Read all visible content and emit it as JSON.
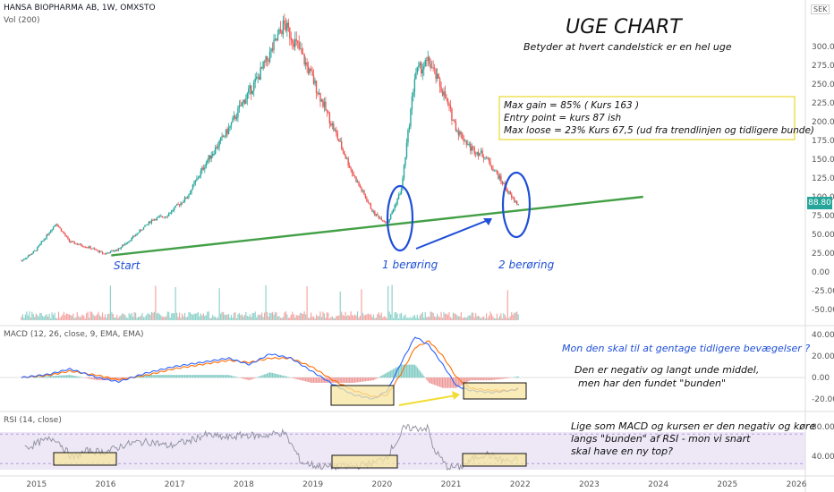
{
  "header": {
    "ticker": "HANSA BIOPHARMA AB, 1W, OMXSTO",
    "vol": "Vol (200)",
    "macd": "MACD (12, 26, close, 9, EMA, EMA)",
    "rsi": "RSI (14, close)",
    "currency": "SEK",
    "last_price": "88.80"
  },
  "annotations": {
    "title": "UGE CHART",
    "subtitle": "Betyder at hvert candelstick er en hel uge",
    "box_lines": [
      "Max gain = 85% ( Kurs 163 )",
      "Entry point = kurs 87 ish",
      "Max loose = 23% Kurs 67,5 (ud fra trendlinjen og tidligere bunde)"
    ],
    "start": "Start",
    "touch1": "1 berøring",
    "touch2": "2 berøring",
    "macd_q": "Mon den skal til at gentage tidligere bevægelser ?",
    "macd_note_1": "Den er negativ og langt unde middel,",
    "macd_note_2": "men har den fundet \"bunden\"",
    "rsi_note_1": "Lige som MACD og kursen er den negativ og køre",
    "rsi_note_2": "langs \"bunden\" af RSI - mon vi snart",
    "rsi_note_3": "skal have en ny top?"
  },
  "colors": {
    "up": "#26a69a",
    "down": "#ef5350",
    "trend": "#43a047",
    "note_blue": "#1f4fd6",
    "highlight": "#f7e6a0",
    "macd_line": "#2962ff",
    "signal_line": "#ff6d00",
    "rsi_line": "#7e57c2"
  },
  "chart_data": [
    {
      "type": "line",
      "name": "price",
      "x_ticks": [
        "2015",
        "2016",
        "2017",
        "2018",
        "2019",
        "2020",
        "2021",
        "2022",
        "2023",
        "2024",
        "2025",
        "2026"
      ],
      "y_ticks": [
        -50,
        -25,
        0,
        25,
        50,
        75,
        100,
        125,
        150,
        175,
        200,
        225,
        250,
        275,
        300
      ],
      "x": [
        2014.8,
        2015.0,
        2015.3,
        2015.5,
        2015.8,
        2016.0,
        2016.2,
        2016.4,
        2016.7,
        2016.9,
        2017.2,
        2017.5,
        2017.8,
        2018.0,
        2018.2,
        2018.4,
        2018.6,
        2018.8,
        2019.0,
        2019.3,
        2019.6,
        2019.9,
        2020.1,
        2020.3,
        2020.5,
        2020.7,
        2020.9,
        2021.1,
        2021.3,
        2021.5,
        2021.7,
        2021.9,
        2022.0
      ],
      "y": [
        15,
        28,
        65,
        40,
        32,
        24,
        30,
        45,
        70,
        75,
        100,
        150,
        190,
        225,
        255,
        290,
        330,
        300,
        260,
        195,
        130,
        78,
        65,
        110,
        265,
        280,
        240,
        190,
        165,
        155,
        128,
        98,
        89
      ],
      "trendline": {
        "from": [
          2016.1,
          22
        ],
        "to": [
          2023.8,
          100
        ]
      },
      "ylim": [
        -55,
        330
      ]
    },
    {
      "type": "line",
      "name": "MACD",
      "y_ticks": [
        -20,
        0,
        20,
        40
      ],
      "x": [
        2014.8,
        2015.2,
        2015.5,
        2015.9,
        2016.2,
        2016.6,
        2017.0,
        2017.4,
        2017.8,
        2018.1,
        2018.4,
        2018.7,
        2019.0,
        2019.3,
        2019.6,
        2019.9,
        2020.1,
        2020.3,
        2020.5,
        2020.7,
        2020.9,
        2021.1,
        2021.3,
        2021.6,
        2021.9,
        2022.0
      ],
      "macd": [
        0,
        3,
        8,
        0,
        -4,
        4,
        10,
        14,
        18,
        12,
        22,
        18,
        6,
        -6,
        -16,
        -20,
        -12,
        14,
        38,
        30,
        12,
        -8,
        -12,
        -14,
        -12,
        -10
      ],
      "signal": [
        0,
        2,
        6,
        2,
        -2,
        2,
        8,
        12,
        16,
        14,
        18,
        18,
        10,
        -2,
        -12,
        -18,
        -16,
        4,
        28,
        34,
        20,
        0,
        -10,
        -12,
        -12,
        -11
      ],
      "ylim": [
        -28,
        45
      ]
    },
    {
      "type": "line",
      "name": "RSI",
      "y_ticks": [
        40,
        80
      ],
      "bands": [
        30,
        70
      ],
      "ylim": [
        20,
        90
      ]
    }
  ]
}
